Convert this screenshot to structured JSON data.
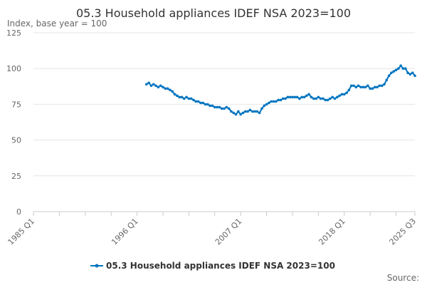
{
  "chart_data": {
    "type": "line",
    "title": "05.3 Household appliances IDEF NSA 2023=100",
    "subtitle": "Index, base year = 100",
    "xlabel": "",
    "ylabel": "",
    "ylim": [
      0,
      125
    ],
    "yticks": [
      "0",
      "25",
      "50",
      "75",
      "100",
      "125"
    ],
    "xlim": [
      "1985 Q1",
      "2025 Q3"
    ],
    "xticks": [
      "1985 Q1",
      "1996 Q1",
      "2007 Q1",
      "2018 Q1",
      "2025 Q3"
    ],
    "grid": true,
    "legend_position": "bottom",
    "source_label": "Source:",
    "series": [
      {
        "name": "05.3 Household appliances IDEF NSA 2023=100",
        "color": "#0075c0",
        "start": "1997 Q1",
        "frequency": "quarterly",
        "values": [
          89,
          90,
          88,
          89,
          88,
          87,
          88,
          87,
          86,
          86,
          85,
          84,
          82,
          81,
          80,
          80,
          79,
          80,
          79,
          79,
          78,
          77,
          77,
          76,
          76,
          75,
          75,
          74,
          74,
          73,
          73,
          73,
          72,
          72,
          73,
          72,
          70,
          69,
          68,
          70,
          68,
          69,
          70,
          70,
          71,
          70,
          70,
          70,
          69,
          72,
          74,
          75,
          76,
          77,
          77,
          77,
          78,
          78,
          79,
          79,
          80,
          80,
          80,
          80,
          80,
          79,
          80,
          80,
          81,
          82,
          80,
          79,
          79,
          80,
          79,
          79,
          78,
          78,
          79,
          80,
          79,
          80,
          81,
          82,
          82,
          83,
          85,
          88,
          88,
          87,
          88,
          87,
          87,
          87,
          88,
          86,
          86,
          87,
          87,
          88,
          88,
          89,
          92,
          95,
          97,
          98,
          99,
          100,
          102,
          100,
          100,
          97,
          96,
          97,
          95
        ]
      }
    ]
  }
}
